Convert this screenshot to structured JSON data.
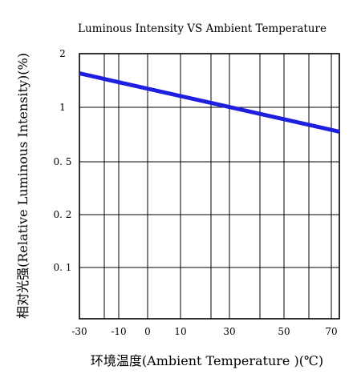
{
  "chart_data": {
    "type": "line",
    "title": "Luminous Intensity VS Ambient Temperature",
    "xlabel": "环境温度(Ambient  Temperature )(℃)",
    "ylabel": "相对光强(Relative  Luminous  Intensity)(%)",
    "x_ticks": [
      "-30",
      "-10",
      "0",
      "10",
      "30",
      "50",
      "70"
    ],
    "y_ticks": [
      "2",
      "1",
      "0. 5",
      "0. 2",
      "0. 1"
    ],
    "xlim": [
      -30,
      75
    ],
    "grid": true,
    "line_color": "#1f1fe0",
    "series": [
      {
        "x": [
          -30,
          75
        ],
        "y": [
          1.55,
          0.73
        ]
      }
    ]
  }
}
